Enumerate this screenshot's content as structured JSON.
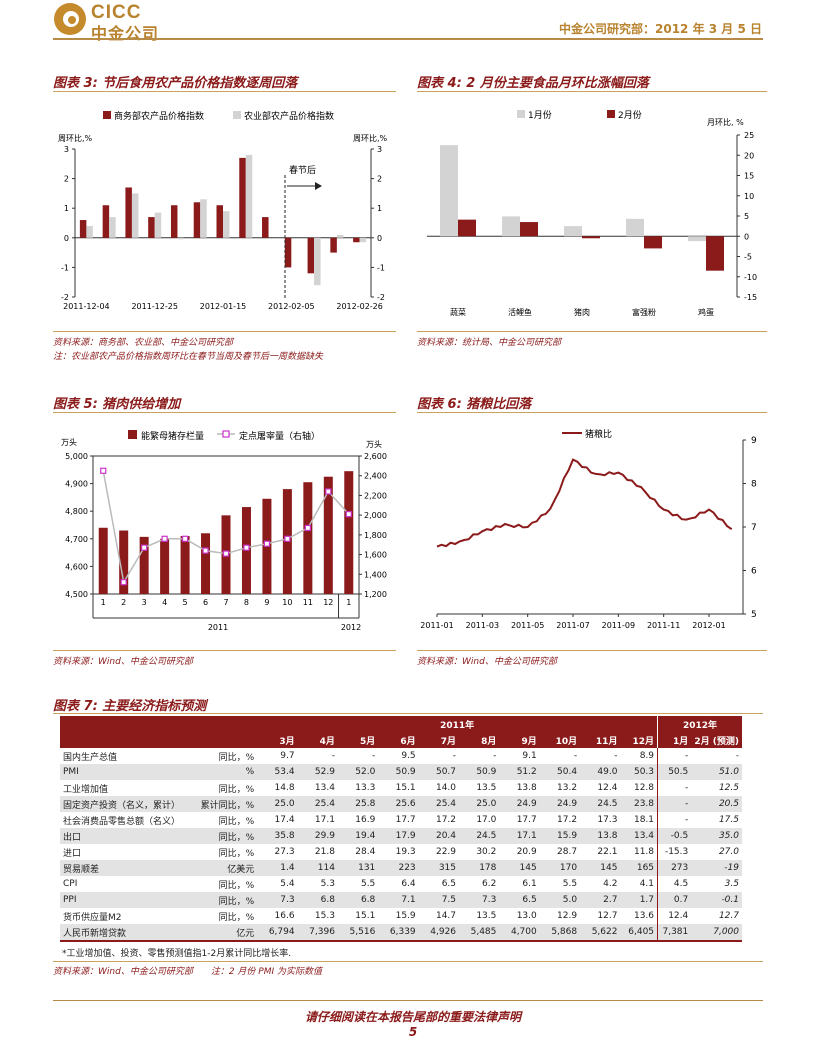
{
  "header": {
    "logo_en": "CICC",
    "logo_zh": "中金公司",
    "right_text": "中金公司研究部：2012 年 3 月 5 日"
  },
  "colors": {
    "dark_red": "#8b1a1a",
    "gray": "#d3d3d3",
    "brand_gold": "#b8822e",
    "pink": "#cc33cc"
  },
  "figure3": {
    "title": "图表 3: 节后食用农产品价格指数逐周回落",
    "legend": [
      "商务部农产品价格指数",
      "农业部农产品价格指数"
    ],
    "left_unit": "周环比,%",
    "right_unit": "周环比,%",
    "annotation": "春节后",
    "source": "资料来源：商务部、农业部、中金公司研究部",
    "note": "注：农业部农产品价格指数周环比在春节当周及春节后一周数据缺失"
  },
  "figure4": {
    "title": "图表 4: 2 月份主要食品月环比涨幅回落",
    "legend": [
      "1月份",
      "2月份"
    ],
    "right_unit": "月环比, %",
    "source": "资料来源：统计局、中金公司研究部"
  },
  "figure5": {
    "title": "图表 5: 猪肉供给增加",
    "legend": [
      "能繁母猪存栏量",
      "定点屠宰量（右轴）"
    ],
    "left_unit": "万头",
    "right_unit": "万头",
    "year_labels": [
      "2011",
      "2012"
    ],
    "source": "资料来源：Wind、中金公司研究部"
  },
  "figure6": {
    "title": "图表 6: 猪粮比回落",
    "legend": [
      "猪粮比"
    ],
    "source": "资料来源：Wind、中金公司研究部"
  },
  "chart_data": [
    {
      "type": "bar",
      "categories": [
        "2011-12-04",
        "2011-12-11",
        "2011-12-18",
        "2011-12-25",
        "2012-01-01",
        "2012-01-08",
        "2012-01-15",
        "2012-01-22",
        "2012-01-29",
        "2012-02-05",
        "2012-02-12",
        "2012-02-19",
        "2012-02-26"
      ],
      "tick_labels": [
        "2011-12-04",
        "2011-12-25",
        "2012-01-15",
        "2012-02-05",
        "2012-02-26"
      ],
      "series": [
        {
          "name": "商务部农产品价格指数",
          "values": [
            0.6,
            1.1,
            1.7,
            0.7,
            1.1,
            1.2,
            1.1,
            2.7,
            0.7,
            -1.0,
            -1.2,
            -0.5,
            -0.15
          ]
        },
        {
          "name": "农业部农产品价格指数",
          "values": [
            0.4,
            0.7,
            1.5,
            0.85,
            -0.05,
            1.3,
            0.9,
            2.8,
            null,
            null,
            -1.6,
            0.1,
            -0.15
          ]
        }
      ],
      "ylim": [
        -2,
        3
      ],
      "yticks": [
        -2,
        -1,
        0,
        1,
        2,
        3
      ]
    },
    {
      "type": "bar",
      "categories": [
        "蔬菜",
        "活鲤鱼",
        "猪肉",
        "富强粉",
        "鸡蛋"
      ],
      "series": [
        {
          "name": "1月份",
          "values": [
            22.5,
            4.9,
            2.5,
            4.3,
            -1.2
          ]
        },
        {
          "name": "2月份",
          "values": [
            4.1,
            3.5,
            -0.5,
            -3.0,
            -8.5
          ]
        }
      ],
      "ylim": [
        -15,
        25
      ],
      "yticks": [
        -15,
        -10,
        -5,
        0,
        5,
        10,
        15,
        20,
        25
      ]
    },
    {
      "type": "bar",
      "categories": [
        "1",
        "2",
        "3",
        "4",
        "5",
        "6",
        "7",
        "8",
        "9",
        "10",
        "11",
        "12",
        "1"
      ],
      "series": [
        {
          "name": "能繁母猪存栏量",
          "axis": "left",
          "values": [
            4740,
            4730,
            4707,
            4700,
            4710,
            4720,
            4785,
            4815,
            4845,
            4880,
            4905,
            4925,
            4945
          ]
        },
        {
          "name": "定点屠宰量（右轴）",
          "axis": "right",
          "type": "line",
          "values": [
            2450,
            1320,
            1670,
            1760,
            1760,
            1640,
            1610,
            1670,
            1710,
            1760,
            1870,
            2240,
            2010
          ]
        }
      ],
      "ylim_left": [
        4500,
        5000
      ],
      "yticks_left": [
        4500,
        4600,
        4700,
        4800,
        4900,
        5000
      ],
      "ylim_right": [
        1200,
        2600
      ],
      "yticks_right": [
        1200,
        1400,
        1600,
        1800,
        2000,
        2200,
        2400,
        2600
      ]
    },
    {
      "type": "line",
      "x": [
        "2011-01",
        "2011-02",
        "2011-03",
        "2011-04",
        "2011-05",
        "2011-06",
        "2011-07",
        "2011-08",
        "2011-09",
        "2011-10",
        "2011-11",
        "2011-12",
        "2012-01",
        "2012-02"
      ],
      "x_tick_labels": [
        "2011-01",
        "2011-03",
        "2011-05",
        "2011-07",
        "2011-09",
        "2011-11",
        "2012-01"
      ],
      "series": [
        {
          "name": "猪粮比",
          "values": [
            6.55,
            6.65,
            6.9,
            7.05,
            7.0,
            7.4,
            8.55,
            8.2,
            8.25,
            7.9,
            7.4,
            7.15,
            7.4,
            6.95
          ]
        }
      ],
      "ylim": [
        5,
        9
      ],
      "yticks": [
        5,
        6,
        7,
        8,
        9
      ]
    }
  ],
  "figure7": {
    "title": "图表 7: 主要经济指标预测",
    "header_2011": "2011年",
    "header_2012": "2012年",
    "months": [
      "3月",
      "4月",
      "5月",
      "6月",
      "7月",
      "8月",
      "9月",
      "10月",
      "11月",
      "12月",
      "1月",
      "2月 (预测)"
    ],
    "rows": [
      {
        "name": "国内生产总值",
        "unit": "同比，%",
        "values": [
          "9.7",
          "-",
          "-",
          "9.5",
          "-",
          "-",
          "9.1",
          "-",
          "-",
          "8.9",
          "-",
          "-"
        ],
        "shade": false
      },
      {
        "name": "PMI",
        "unit": "%",
        "values": [
          "53.4",
          "52.9",
          "52.0",
          "50.9",
          "50.7",
          "50.9",
          "51.2",
          "50.4",
          "49.0",
          "50.3",
          "50.5",
          "51.0"
        ],
        "shade": true
      },
      {
        "name": "工业增加值",
        "unit": "同比，%",
        "values": [
          "14.8",
          "13.4",
          "13.3",
          "15.1",
          "14.0",
          "13.5",
          "13.8",
          "13.2",
          "12.4",
          "12.8",
          "-",
          "12.5"
        ],
        "shade": false
      },
      {
        "name": "固定资产投资（名义，累计）",
        "unit": "累计同比，%",
        "values": [
          "25.0",
          "25.4",
          "25.8",
          "25.6",
          "25.4",
          "25.0",
          "24.9",
          "24.9",
          "24.5",
          "23.8",
          "-",
          "20.5"
        ],
        "shade": true
      },
      {
        "name": "社会消费品零售总额（名义）",
        "unit": "同比，%",
        "values": [
          "17.4",
          "17.1",
          "16.9",
          "17.7",
          "17.2",
          "17.0",
          "17.7",
          "17.2",
          "17.3",
          "18.1",
          "-",
          "17.5"
        ],
        "shade": false
      },
      {
        "name": "出口",
        "unit": "同比，%",
        "values": [
          "35.8",
          "29.9",
          "19.4",
          "17.9",
          "20.4",
          "24.5",
          "17.1",
          "15.9",
          "13.8",
          "13.4",
          "-0.5",
          "35.0"
        ],
        "shade": true
      },
      {
        "name": "进口",
        "unit": "同比，%",
        "values": [
          "27.3",
          "21.8",
          "28.4",
          "19.3",
          "22.9",
          "30.2",
          "20.9",
          "28.7",
          "22.1",
          "11.8",
          "-15.3",
          "27.0"
        ],
        "shade": false
      },
      {
        "name": "贸易顺差",
        "unit": "亿美元",
        "values": [
          "1.4",
          "114",
          "131",
          "223",
          "315",
          "178",
          "145",
          "170",
          "145",
          "165",
          "273",
          "-19"
        ],
        "shade": true
      },
      {
        "name": "CPI",
        "unit": "同比，%",
        "values": [
          "5.4",
          "5.3",
          "5.5",
          "6.4",
          "6.5",
          "6.2",
          "6.1",
          "5.5",
          "4.2",
          "4.1",
          "4.5",
          "3.5"
        ],
        "shade": false
      },
      {
        "name": "PPI",
        "unit": "同比，%",
        "values": [
          "7.3",
          "6.8",
          "6.8",
          "7.1",
          "7.5",
          "7.3",
          "6.5",
          "5.0",
          "2.7",
          "1.7",
          "0.7",
          "-0.1"
        ],
        "shade": true
      },
      {
        "name": "货币供应量M2",
        "unit": "同比，%",
        "values": [
          "16.6",
          "15.3",
          "15.1",
          "15.9",
          "14.7",
          "13.5",
          "13.0",
          "12.9",
          "12.7",
          "13.6",
          "12.4",
          "12.7"
        ],
        "shade": false
      },
      {
        "name": "人民币新增贷款",
        "unit": "亿元",
        "values": [
          "6,794",
          "7,396",
          "5,516",
          "6,339",
          "4,926",
          "5,485",
          "4,700",
          "5,868",
          "5,622",
          "6,405",
          "7,381",
          "7,000"
        ],
        "shade": true
      }
    ],
    "note": "*工业增加值、投资、零售预测值指1-2月累计同比增长率.",
    "source": "资料来源：Wind、中金公司研究部　　注：2 月份 PMI 为实际数值"
  },
  "footer": {
    "disclaimer": "请仔细阅读在本报告尾部的重要法律声明",
    "page": "5"
  }
}
